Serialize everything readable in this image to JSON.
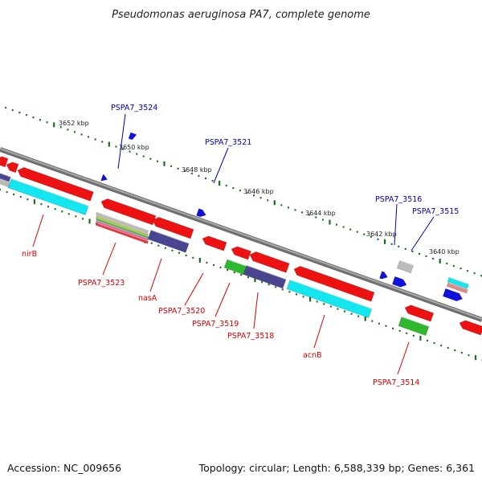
{
  "title": "Pseudomonas aeruginosa PA7, complete genome",
  "footer": {
    "accession": "Accession: NC_009656",
    "summary": "Topology: circular; Length: 6,588,339 bp; Genes: 6,361"
  },
  "ruler_labels": [
    "3652 kbp",
    "3650 kbp",
    "3648 kbp",
    "3646 kbp",
    "3644 kbp",
    "3642 kbp",
    "3640 kbp"
  ],
  "gene_labels_forward": [
    "PSPA7_3524",
    "PSPA7_3521",
    "PSPA7_3516",
    "PSPA7_3515"
  ],
  "gene_labels_reverse": [
    "nirB",
    "PSPA7_3523",
    "nasA",
    "PSPA7_3520",
    "PSPA7_3519",
    "PSPA7_3518",
    "acnB",
    "PSPA7_3514"
  ],
  "colors": {
    "backbone": "#8c8c8c",
    "cds_red": "#ee1111",
    "cds_cyan": "#14e6f0",
    "cds_navy": "#4a4590",
    "cds_green": "#2db82d",
    "cds_gray": "#bbbbbb",
    "cds_blue": "#1010dd",
    "tick_green": "#1a6e1a",
    "label_red": "#d40000",
    "label_blue": "#0000b0"
  }
}
